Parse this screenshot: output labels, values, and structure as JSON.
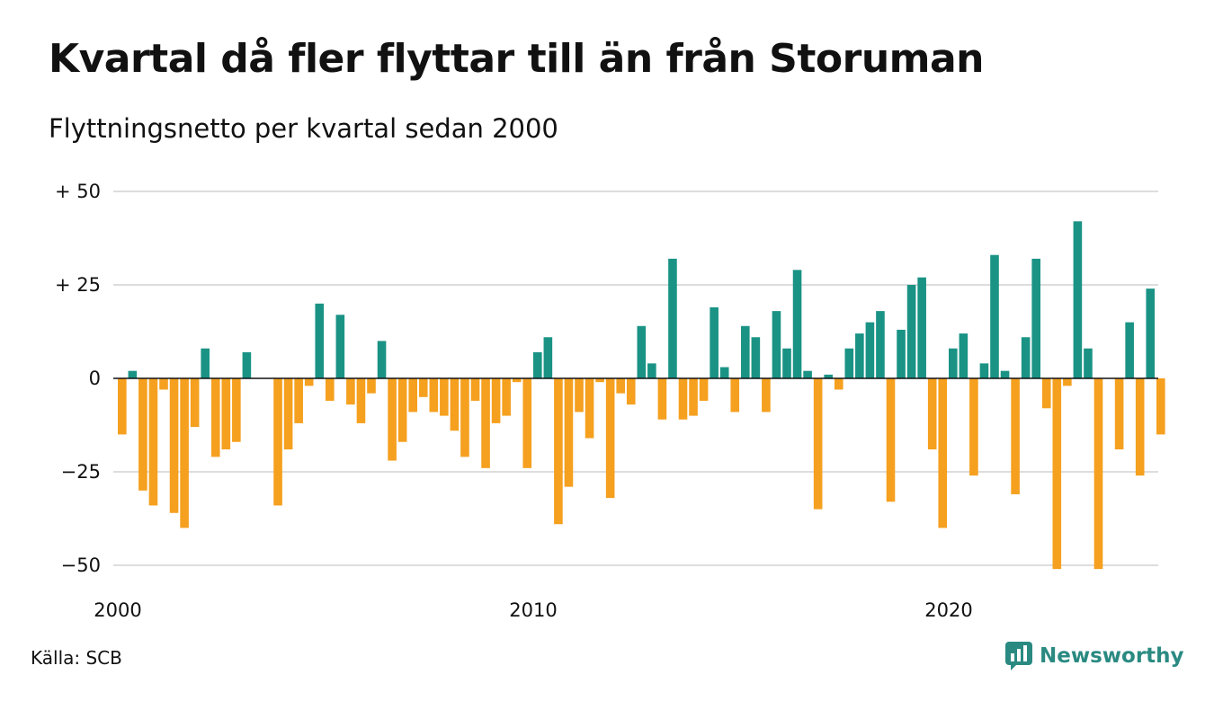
{
  "title": "Kvartal då fler flyttar till än från Storuman",
  "subtitle": "Flyttningsnetto per kvartal sedan 2000",
  "source": "Källa: SCB",
  "brand": "Newsworthy",
  "colors": {
    "positive": "#1a9385",
    "negative": "#f5a01f",
    "grid": "#dddddd",
    "brand": "#2a8a82"
  },
  "chart_data": {
    "type": "bar",
    "title": "Kvartal då fler flyttar till än från Storuman",
    "subtitle": "Flyttningsnetto per kvartal sedan 2000",
    "xlabel": "",
    "ylabel": "",
    "ylim": [
      -55,
      55
    ],
    "yticks": [
      {
        "value": 50,
        "label": "+ 50"
      },
      {
        "value": 25,
        "label": "+ 25"
      },
      {
        "value": 0,
        "label": "0"
      },
      {
        "value": -25,
        "label": "−25"
      },
      {
        "value": -50,
        "label": "−50"
      }
    ],
    "xticks": [
      {
        "year": 2000,
        "label": "2000"
      },
      {
        "year": 2010,
        "label": "2010"
      },
      {
        "year": 2020,
        "label": "2020"
      }
    ],
    "grid": true,
    "legend": "none",
    "start": "2000 Q1",
    "categories": [
      "2000 Q1",
      "2000 Q2",
      "2000 Q3",
      "2000 Q4",
      "2001 Q1",
      "2001 Q2",
      "2001 Q3",
      "2001 Q4",
      "2002 Q1",
      "2002 Q2",
      "2002 Q3",
      "2002 Q4",
      "2003 Q1",
      "2003 Q2",
      "2003 Q3",
      "2003 Q4",
      "2004 Q1",
      "2004 Q2",
      "2004 Q3",
      "2004 Q4",
      "2005 Q1",
      "2005 Q2",
      "2005 Q3",
      "2005 Q4",
      "2006 Q1",
      "2006 Q2",
      "2006 Q3",
      "2006 Q4",
      "2007 Q1",
      "2007 Q2",
      "2007 Q3",
      "2007 Q4",
      "2008 Q1",
      "2008 Q2",
      "2008 Q3",
      "2008 Q4",
      "2009 Q1",
      "2009 Q2",
      "2009 Q3",
      "2009 Q4",
      "2010 Q1",
      "2010 Q2",
      "2010 Q3",
      "2010 Q4",
      "2011 Q1",
      "2011 Q2",
      "2011 Q3",
      "2011 Q4",
      "2012 Q1",
      "2012 Q2",
      "2012 Q3",
      "2012 Q4",
      "2013 Q1",
      "2013 Q2",
      "2013 Q3",
      "2013 Q4",
      "2014 Q1",
      "2014 Q2",
      "2014 Q3",
      "2014 Q4",
      "2015 Q1",
      "2015 Q2",
      "2015 Q3",
      "2015 Q4",
      "2016 Q1",
      "2016 Q2",
      "2016 Q3",
      "2016 Q4",
      "2017 Q1",
      "2017 Q2",
      "2017 Q3",
      "2017 Q4",
      "2018 Q1",
      "2018 Q2",
      "2018 Q3",
      "2018 Q4",
      "2019 Q1",
      "2019 Q2",
      "2019 Q3",
      "2019 Q4",
      "2020 Q1",
      "2020 Q2",
      "2020 Q3",
      "2020 Q4",
      "2021 Q1",
      "2021 Q2",
      "2021 Q3",
      "2021 Q4",
      "2022 Q1",
      "2022 Q2",
      "2022 Q3",
      "2022 Q4",
      "2023 Q1",
      "2023 Q2",
      "2023 Q3",
      "2023 Q4",
      "2024 Q1",
      "2024 Q2",
      "2024 Q3",
      "2024 Q4",
      "2025 Q1"
    ],
    "values": [
      -15,
      2,
      -30,
      -34,
      -3,
      -36,
      -40,
      -13,
      8,
      -21,
      -19,
      -17,
      7,
      0,
      0,
      -34,
      -19,
      -12,
      -2,
      20,
      -6,
      17,
      -7,
      -12,
      -4,
      10,
      -22,
      -17,
      -9,
      -5,
      -9,
      -10,
      -14,
      -21,
      -6,
      -24,
      -12,
      -10,
      -1,
      -24,
      7,
      11,
      -39,
      -29,
      -9,
      -16,
      -1,
      -32,
      -4,
      -7,
      14,
      4,
      -11,
      32,
      -11,
      -10,
      -6,
      19,
      3,
      -9,
      14,
      11,
      -9,
      18,
      8,
      29,
      2,
      -35,
      1,
      -3,
      8,
      12,
      15,
      18,
      -33,
      13,
      25,
      27,
      -19,
      -40,
      8,
      12,
      -26,
      4,
      33,
      2,
      -31,
      11,
      32,
      -8,
      -51,
      -2,
      42,
      8,
      -51,
      0,
      -19,
      15,
      -26,
      24,
      -15
    ]
  }
}
